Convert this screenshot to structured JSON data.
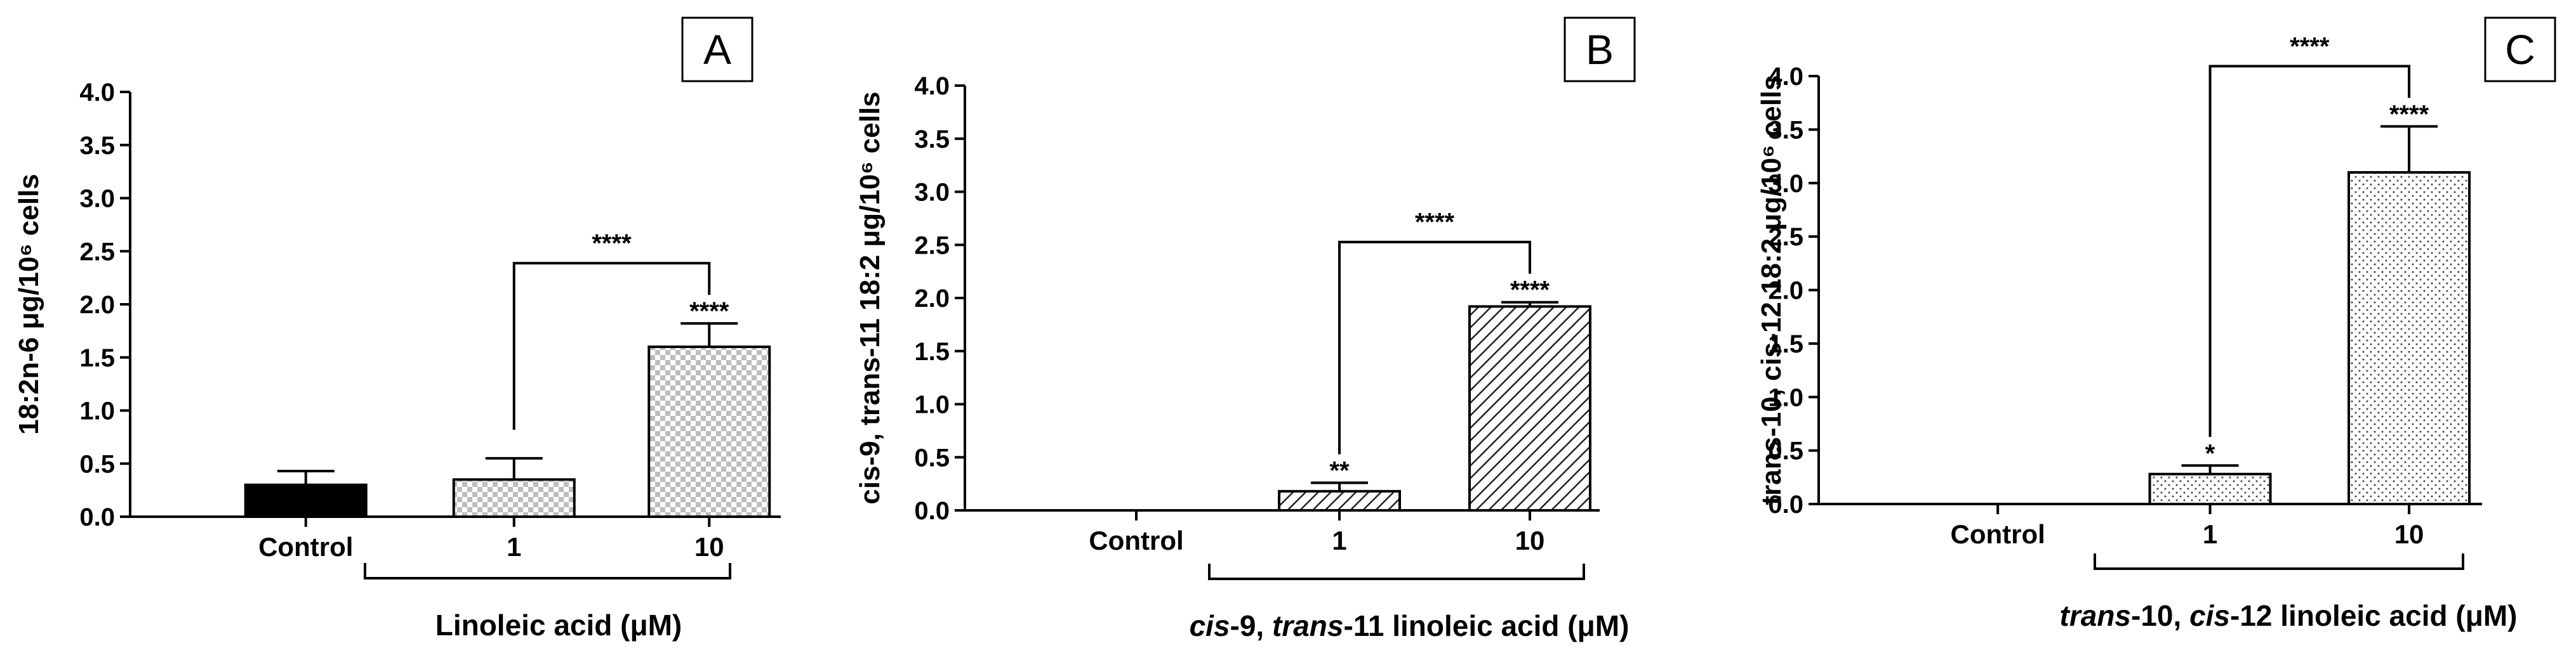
{
  "chart_data": [
    {
      "type": "bar",
      "panel": "A",
      "categories": [
        "Control",
        "1",
        "10"
      ],
      "values": [
        0.3,
        0.35,
        1.6
      ],
      "errors": [
        0.13,
        0.2,
        0.22
      ],
      "bar_stars": [
        "",
        "",
        "****"
      ],
      "comparison": {
        "from": "1",
        "to": "10",
        "stars": "****"
      },
      "ylabel": "18:2n-6 μg/10⁶ cells",
      "ylim": [
        0,
        4.0
      ],
      "yticks": [
        "0.0",
        "0.5",
        "1.0",
        "1.5",
        "2.0",
        "2.5",
        "3.0",
        "3.5",
        "4.0"
      ],
      "xlabel": "Linoleic acid (μM)",
      "fills": [
        "solid-black",
        "checker",
        "checker"
      ]
    },
    {
      "type": "bar",
      "panel": "B",
      "categories": [
        "Control",
        "1",
        "10"
      ],
      "values": [
        0.0,
        0.18,
        1.92
      ],
      "errors": [
        0.0,
        0.08,
        0.04
      ],
      "bar_stars": [
        "",
        "**",
        "****"
      ],
      "comparison": {
        "from": "1",
        "to": "10",
        "stars": "****"
      },
      "ylabel": "cis-9, trans-11 18:2 μg/10⁶ cells",
      "ylim": [
        0,
        4.0
      ],
      "yticks": [
        "0.0",
        "0.5",
        "1.0",
        "1.5",
        "2.0",
        "2.5",
        "3.0",
        "3.5",
        "4.0"
      ],
      "xlabel_parts": [
        [
          "cis",
          true
        ],
        [
          "-9, ",
          false
        ],
        [
          "trans",
          true
        ],
        [
          "-11 linoleic acid (μM)",
          false
        ]
      ],
      "fills": [
        "none",
        "diagonal",
        "diagonal"
      ]
    },
    {
      "type": "bar",
      "panel": "C",
      "categories": [
        "Control",
        "1",
        "10"
      ],
      "values": [
        0.0,
        0.28,
        3.1
      ],
      "errors": [
        0.0,
        0.08,
        0.43
      ],
      "bar_stars": [
        "",
        "*",
        "****"
      ],
      "comparison": {
        "from": "1",
        "to": "10",
        "stars": "****"
      },
      "ylabel": "trans-10, cis-12 18:2 μg/10⁶ cells",
      "ylim": [
        0,
        4.0
      ],
      "yticks": [
        "0.0",
        "0.5",
        "1.0",
        "1.5",
        "2.0",
        "2.5",
        "3.0",
        "3.5",
        "4.0"
      ],
      "xlabel_parts": [
        [
          "trans",
          true
        ],
        [
          "-10, ",
          false
        ],
        [
          "cis",
          true
        ],
        [
          "-12 linoleic acid (μM)",
          false
        ]
      ],
      "fills": [
        "none",
        "dots",
        "dots"
      ]
    }
  ]
}
